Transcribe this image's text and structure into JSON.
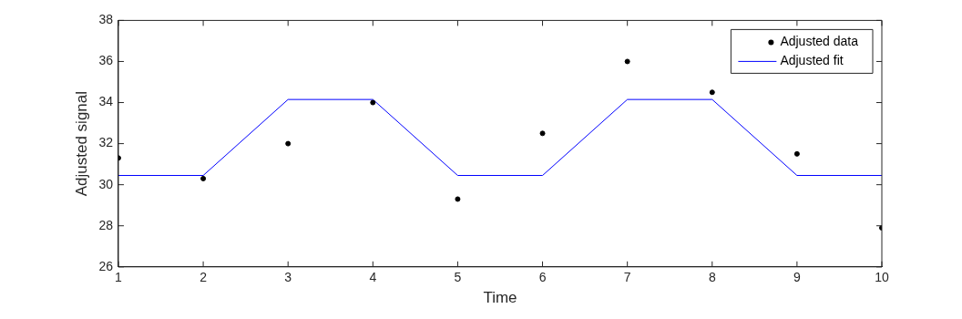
{
  "chart_data": {
    "type": "line",
    "xlabel": "Time",
    "ylabel": "Adjusted signal",
    "x": [
      1,
      2,
      3,
      4,
      5,
      6,
      7,
      8,
      9,
      10
    ],
    "series": [
      {
        "name": "Adjusted data",
        "type": "scatter",
        "marker": "circle",
        "color": "#000000",
        "values": [
          31.3,
          30.3,
          32.0,
          34.0,
          29.3,
          32.5,
          36.0,
          34.5,
          31.5,
          27.9
        ]
      },
      {
        "name": "Adjusted fit",
        "type": "line",
        "line_style": "solid",
        "color": "#0000ff",
        "values": [
          30.45,
          30.45,
          34.15,
          34.15,
          30.45,
          30.45,
          34.15,
          34.15,
          30.45,
          30.45
        ]
      }
    ],
    "xlim": [
      1,
      10
    ],
    "xticks": [
      1,
      2,
      3,
      4,
      5,
      6,
      7,
      8,
      9,
      10
    ],
    "ylim": [
      26,
      38
    ],
    "yticks": [
      26,
      28,
      30,
      32,
      34,
      36,
      38
    ],
    "grid": false,
    "legend": "top right"
  }
}
